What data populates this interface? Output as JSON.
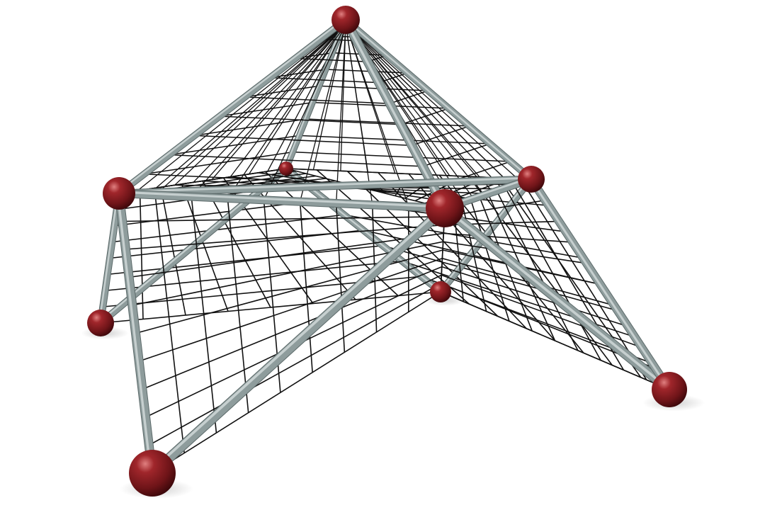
{
  "scene": {
    "background": "#ffffff",
    "colors": {
      "rope": "#111111",
      "pole": "#8e9c9c",
      "pole_highlight": "#d4dcdc",
      "pole_shadow": "#5c6a6a",
      "ball": "#8a1a1e",
      "ball_highlight": "#d86a6a",
      "ball_shadow": "#3a070a"
    }
  }
}
